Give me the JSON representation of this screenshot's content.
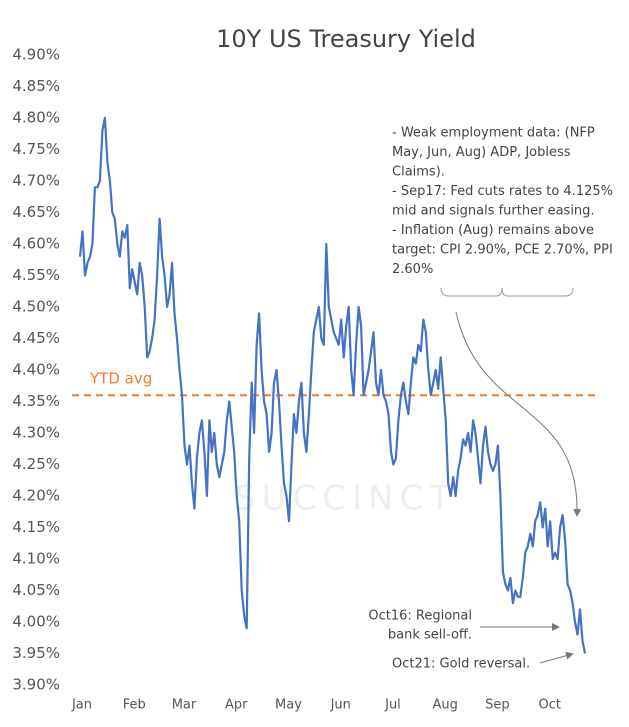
{
  "chart_data": {
    "type": "line",
    "title": "10Y US Treasury Yield",
    "watermark": "SUCCINCT",
    "series": [
      {
        "color": "#4472c4",
        "values": [
          4.58,
          4.62,
          4.55,
          4.57,
          4.58,
          4.6,
          4.69,
          4.69,
          4.7,
          4.78,
          4.8,
          4.73,
          4.7,
          4.65,
          4.64,
          4.6,
          4.58,
          4.62,
          4.61,
          4.63,
          4.53,
          4.56,
          4.54,
          4.52,
          4.57,
          4.55,
          4.5,
          4.42,
          4.43,
          4.45,
          4.48,
          4.55,
          4.64,
          4.58,
          4.55,
          4.5,
          4.52,
          4.57,
          4.49,
          4.45,
          4.4,
          4.36,
          4.28,
          4.25,
          4.28,
          4.22,
          4.18,
          4.26,
          4.3,
          4.32,
          4.27,
          4.2,
          4.32,
          4.27,
          4.3,
          4.25,
          4.23,
          4.25,
          4.27,
          4.32,
          4.35,
          4.31,
          4.27,
          4.2,
          4.16,
          4.05,
          4.01,
          3.99,
          4.26,
          4.38,
          4.3,
          4.44,
          4.49,
          4.4,
          4.35,
          4.33,
          4.27,
          4.3,
          4.38,
          4.4,
          4.35,
          4.28,
          4.22,
          4.2,
          4.16,
          4.25,
          4.33,
          4.3,
          4.35,
          4.38,
          4.3,
          4.27,
          4.33,
          4.4,
          4.46,
          4.48,
          4.5,
          4.45,
          4.44,
          4.6,
          4.5,
          4.48,
          4.46,
          4.45,
          4.44,
          4.48,
          4.42,
          4.47,
          4.5,
          4.4,
          4.36,
          4.44,
          4.5,
          4.47,
          4.36,
          4.38,
          4.4,
          4.43,
          4.46,
          4.38,
          4.36,
          4.4,
          4.36,
          4.35,
          4.33,
          4.27,
          4.25,
          4.26,
          4.32,
          4.36,
          4.38,
          4.35,
          4.33,
          4.38,
          4.42,
          4.41,
          4.44,
          4.43,
          4.48,
          4.46,
          4.4,
          4.36,
          4.38,
          4.4,
          4.37,
          4.42,
          4.37,
          4.32,
          4.22,
          4.2,
          4.23,
          4.2,
          4.24,
          4.26,
          4.29,
          4.28,
          4.3,
          4.27,
          4.32,
          4.3,
          4.26,
          4.22,
          4.28,
          4.31,
          4.27,
          4.25,
          4.24,
          4.25,
          4.28,
          4.2,
          4.08,
          4.06,
          4.05,
          4.07,
          4.03,
          4.05,
          4.04,
          4.04,
          4.07,
          4.11,
          4.12,
          4.14,
          4.12,
          4.16,
          4.17,
          4.19,
          4.15,
          4.18,
          4.12,
          4.16,
          4.1,
          4.11,
          4.1,
          4.15,
          4.17,
          4.13,
          4.06,
          4.05,
          4.03,
          4.0,
          3.98,
          4.02,
          3.97,
          3.95
        ]
      }
    ],
    "xlim": [
      0,
      203
    ],
    "xticks": [
      {
        "value": 0,
        "label": "Jan"
      },
      {
        "value": 21,
        "label": "Feb"
      },
      {
        "value": 41,
        "label": "Mar"
      },
      {
        "value": 62,
        "label": "Apr"
      },
      {
        "value": 83,
        "label": "May"
      },
      {
        "value": 104,
        "label": "Jun"
      },
      {
        "value": 125,
        "label": "Jul"
      },
      {
        "value": 146,
        "label": "Aug"
      },
      {
        "value": 167,
        "label": "Sep"
      },
      {
        "value": 188,
        "label": "Oct"
      }
    ],
    "ylim": [
      3.9,
      4.9
    ],
    "yticks": [
      {
        "value": 3.9,
        "label": "3.90%"
      },
      {
        "value": 3.95,
        "label": "3.95%"
      },
      {
        "value": 4.0,
        "label": "4.00%"
      },
      {
        "value": 4.05,
        "label": "4.05%"
      },
      {
        "value": 4.1,
        "label": "4.10%"
      },
      {
        "value": 4.15,
        "label": "4.15%"
      },
      {
        "value": 4.2,
        "label": "4.20%"
      },
      {
        "value": 4.25,
        "label": "4.25%"
      },
      {
        "value": 4.3,
        "label": "4.30%"
      },
      {
        "value": 4.35,
        "label": "4.35%"
      },
      {
        "value": 4.4,
        "label": "4.40%"
      },
      {
        "value": 4.45,
        "label": "4.45%"
      },
      {
        "value": 4.5,
        "label": "4.50%"
      },
      {
        "value": 4.55,
        "label": "4.55%"
      },
      {
        "value": 4.6,
        "label": "4.60%"
      },
      {
        "value": 4.65,
        "label": "4.65%"
      },
      {
        "value": 4.7,
        "label": "4.70%"
      },
      {
        "value": 4.75,
        "label": "4.75%"
      },
      {
        "value": 4.8,
        "label": "4.80%"
      },
      {
        "value": 4.85,
        "label": "4.85%"
      },
      {
        "value": 4.9,
        "label": "4.90%"
      }
    ],
    "reference_line": {
      "label": "YTD avg",
      "value": 4.36,
      "color": "#ed7d31"
    },
    "annotations": [
      {
        "lines": [
          "- Weak employment data: (NFP",
          "May, Jun, Aug) ADP, Jobless",
          "Claims).",
          "- Sep17: Fed cuts rates to 4.125%",
          "mid and signals further easing.",
          "- Inflation (Aug) remains above",
          "target: CPI 2.90%, PCE 2.70%, PPI",
          "2.60%"
        ]
      },
      {
        "lines": [
          "Oct16: Regional",
          "bank sell-off."
        ]
      },
      {
        "lines": [
          "Oct21: Gold reversal."
        ]
      }
    ]
  }
}
